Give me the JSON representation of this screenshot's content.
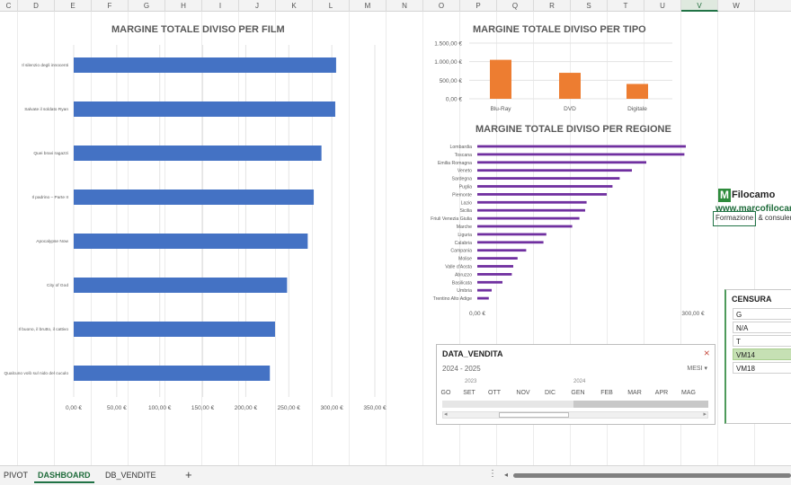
{
  "column_headers": [
    "C",
    "D",
    "E",
    "F",
    "G",
    "H",
    "I",
    "J",
    "K",
    "L",
    "M",
    "N",
    "O",
    "P",
    "Q",
    "R",
    "S",
    "T",
    "U",
    "V",
    "W"
  ],
  "selected_column": "V",
  "colors": {
    "blue_bar": "#4472c4",
    "orange_bar": "#ed7d31",
    "purple_bar": "#7030a0",
    "accent": "#217346",
    "active_slicer": "#c6e0b4"
  },
  "film_chart": {
    "title": "MARGINE TOTALE DIVISO PER FILM",
    "films": [
      {
        "name": "Il silenzio degli innocenti",
        "value": 305
      },
      {
        "name": "Salvate il soldato Ryan",
        "value": 304
      },
      {
        "name": "Quei bravi ragazzi",
        "value": 288
      },
      {
        "name": "Il padrino – Parte II",
        "value": 279
      },
      {
        "name": "Apocalypse Now",
        "value": 272
      },
      {
        "name": "City of God",
        "value": 248
      },
      {
        "name": "Il buono, il brutto, il cattivo",
        "value": 234
      },
      {
        "name": "Qualcuno volò sul nido del cuculo",
        "value": 228
      }
    ],
    "ticks": [
      "0,00 €",
      "50,00 €",
      "100,00 €",
      "150,00 €",
      "200,00 €",
      "250,00 €",
      "300,00 €",
      "350,00 €"
    ],
    "max": 350
  },
  "tipo_chart": {
    "title": "MARGINE TOTALE DIVISO PER TIPO",
    "categories": [
      "Blu-Ray",
      "DVD",
      "Digitale"
    ],
    "values": [
      1050,
      700,
      400
    ],
    "ticks": [
      "0,00 €",
      "500,00 €",
      "1.000,00 €",
      "1.500,00 €"
    ],
    "max": 1500
  },
  "regione_chart": {
    "title": "MARGINE TOTALE DIVISO PER REGIONE",
    "regions": [
      {
        "name": "Lombardia",
        "value": 290
      },
      {
        "name": "Toscana",
        "value": 288
      },
      {
        "name": "Emilia Romagna",
        "value": 235
      },
      {
        "name": "Veneto",
        "value": 215
      },
      {
        "name": "Sardegna",
        "value": 198
      },
      {
        "name": "Puglia",
        "value": 188
      },
      {
        "name": "Piemonte",
        "value": 180
      },
      {
        "name": "Lazio",
        "value": 152
      },
      {
        "name": "Sicilia",
        "value": 150
      },
      {
        "name": "Friuli Venezia Giulia",
        "value": 142
      },
      {
        "name": "Marche",
        "value": 132
      },
      {
        "name": "Liguria",
        "value": 96
      },
      {
        "name": "Calabria",
        "value": 92
      },
      {
        "name": "Campania",
        "value": 68
      },
      {
        "name": "Molise",
        "value": 56
      },
      {
        "name": "Valle d'Aosta",
        "value": 50
      },
      {
        "name": "Abruzzo",
        "value": 48
      },
      {
        "name": "Basilicata",
        "value": 35
      },
      {
        "name": "Umbria",
        "value": 20
      },
      {
        "name": "Trentino Alto Adige",
        "value": 16
      }
    ],
    "ticks": [
      "0,00 €",
      "300,00 €"
    ],
    "max": 300
  },
  "logo": {
    "mark": "M",
    "name": "Filocamo",
    "url": "www.marcofilocamo",
    "tagline_boxed": "Formazione",
    "tagline_rest": "& consulenza"
  },
  "censura": {
    "title": "CENSURA",
    "items": [
      {
        "label": "G",
        "active": false
      },
      {
        "label": "N/A",
        "active": false
      },
      {
        "label": "T",
        "active": false
      },
      {
        "label": "VM14",
        "active": true
      },
      {
        "label": "VM18",
        "active": false
      }
    ]
  },
  "timeline": {
    "title": "DATA_VENDITA",
    "range": "2024 - 2025",
    "level": "MESI ▾",
    "year_2023": "2023",
    "year_2024": "2024",
    "months": [
      "GO",
      "SET",
      "OTT",
      "NOV",
      "DIC",
      "GEN",
      "FEB",
      "MAR",
      "APR",
      "MAG"
    ]
  },
  "tabs": {
    "pivot": "PIVOT",
    "dashboard": "DASHBOARD",
    "db_vendite": "DB_VENDITE",
    "add": "+",
    "more": "⋮"
  }
}
